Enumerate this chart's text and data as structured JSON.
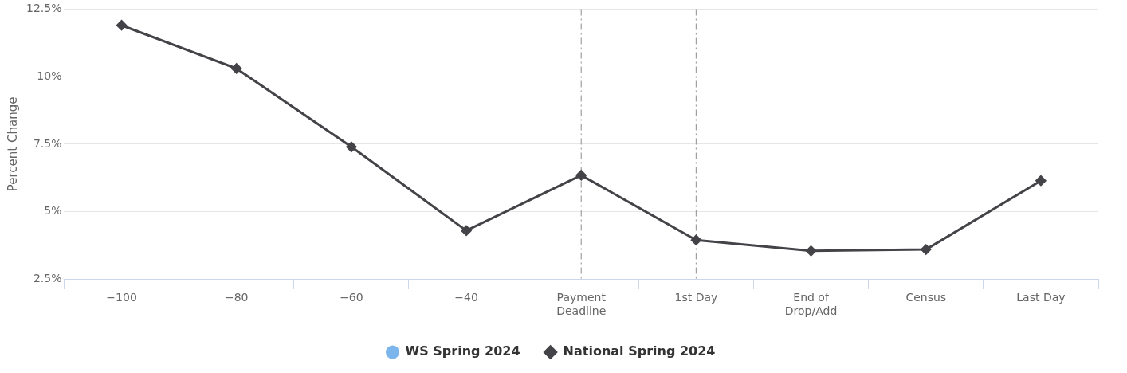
{
  "chart_data": {
    "type": "line",
    "ylabel": "Percent Change",
    "categories": [
      "−100",
      "−80",
      "−60",
      "−40",
      "Payment Deadline",
      "1st Day",
      "End of Drop/Add",
      "Census",
      "Last Day"
    ],
    "series": [
      {
        "name": "WS Spring 2024",
        "color": "#7cb5ec",
        "marker": "circle",
        "values": [
          null,
          null,
          null,
          null,
          null,
          null,
          null,
          null,
          null
        ]
      },
      {
        "name": "National Spring 2024",
        "color": "#434348",
        "marker": "diamond",
        "values": [
          11.9,
          10.3,
          7.4,
          4.3,
          6.35,
          3.95,
          3.55,
          3.6,
          6.15
        ]
      }
    ],
    "ylim": [
      2.5,
      12.5
    ],
    "yticks": [
      {
        "value": 2.5,
        "label": "2.5%"
      },
      {
        "value": 5,
        "label": "5%"
      },
      {
        "value": 7.5,
        "label": "7.5%"
      },
      {
        "value": 10,
        "label": "10%"
      },
      {
        "value": 12.5,
        "label": "12.5%"
      }
    ],
    "ref_lines": [
      {
        "axis": "x",
        "value": "Payment Deadline",
        "color": "#a0a0a0",
        "line_style": "dashdot"
      },
      {
        "axis": "x",
        "value": "1st Day",
        "color": "#a0a0a0",
        "line_style": "dashdot"
      }
    ],
    "grid": "y",
    "legend": "bottom",
    "line_style": "solid"
  }
}
